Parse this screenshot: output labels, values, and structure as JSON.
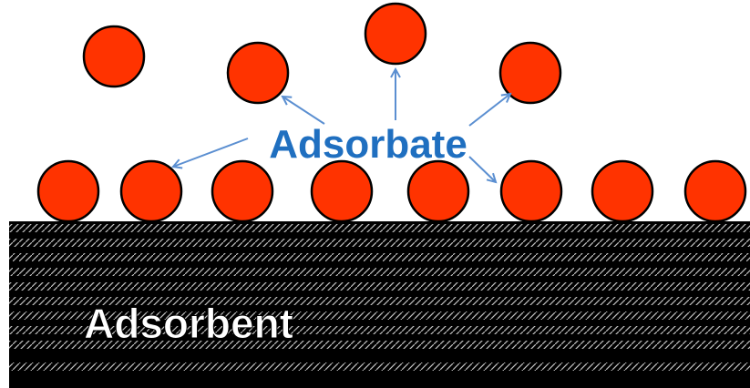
{
  "labels": {
    "adsorbate": "Adsorbate",
    "adsorbent": "Adsorbent"
  },
  "colors": {
    "particle_fill": "#ff3300",
    "particle_stroke": "#000000",
    "arrow": "#5b8fd1",
    "adsorbate_text": "#1f6fc0",
    "adsorbent_surface": "#000000",
    "adsorbent_hatch": "#bfbfbf",
    "adsorbent_text": "#ffffff",
    "adsorbent_text_outline": "#000000"
  }
}
